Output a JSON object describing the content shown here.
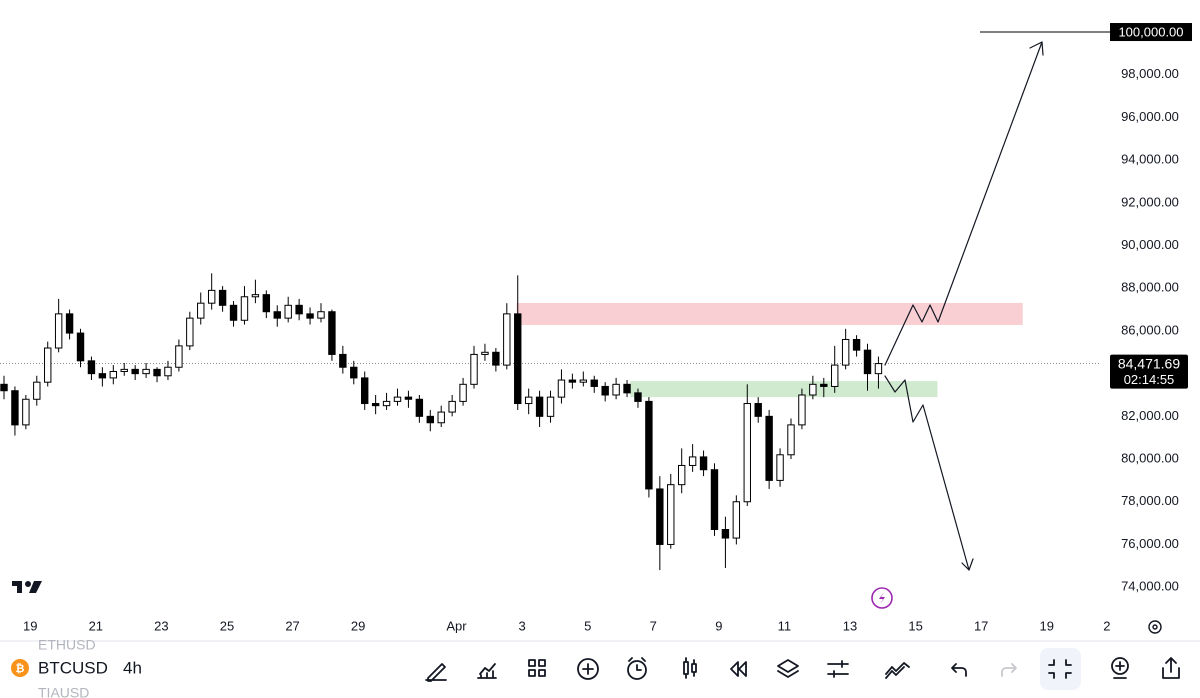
{
  "chart_data": {
    "type": "candlestick",
    "up_color": "#ffffff",
    "down_color": "#000000",
    "candles": [
      [
        83500,
        83900,
        82800,
        83200
      ],
      [
        83200,
        83400,
        81100,
        81600
      ],
      [
        81600,
        83000,
        81400,
        82800
      ],
      [
        82800,
        83900,
        82500,
        83600
      ],
      [
        83600,
        85500,
        83400,
        85200
      ],
      [
        85200,
        87500,
        85000,
        86800
      ],
      [
        86800,
        87000,
        85600,
        85900
      ],
      [
        85900,
        86100,
        84300,
        84600
      ],
      [
        84600,
        84800,
        83700,
        84000
      ],
      [
        84000,
        84300,
        83400,
        83800
      ],
      [
        83800,
        84400,
        83500,
        84100
      ],
      [
        84100,
        84500,
        83900,
        84200
      ],
      [
        84200,
        84400,
        83700,
        84000
      ],
      [
        84000,
        84500,
        83800,
        84200
      ],
      [
        84200,
        84300,
        83600,
        83900
      ],
      [
        83900,
        84600,
        83700,
        84300
      ],
      [
        84300,
        85600,
        84100,
        85300
      ],
      [
        85300,
        86900,
        85100,
        86600
      ],
      [
        86600,
        87800,
        86300,
        87300
      ],
      [
        87300,
        88700,
        87000,
        87900
      ],
      [
        87900,
        88100,
        86900,
        87200
      ],
      [
        87200,
        87400,
        86200,
        86500
      ],
      [
        86500,
        88100,
        86300,
        87600
      ],
      [
        87600,
        88400,
        87300,
        87700
      ],
      [
        87700,
        87900,
        86600,
        86900
      ],
      [
        86900,
        87200,
        86200,
        86600
      ],
      [
        86600,
        87600,
        86400,
        87200
      ],
      [
        87200,
        87500,
        86500,
        86800
      ],
      [
        86800,
        87100,
        86300,
        86600
      ],
      [
        86600,
        87300,
        86400,
        86900
      ],
      [
        86900,
        87000,
        84600,
        84900
      ],
      [
        84900,
        85300,
        84000,
        84300
      ],
      [
        84300,
        84600,
        83500,
        83800
      ],
      [
        83800,
        84100,
        82300,
        82600
      ],
      [
        82600,
        83000,
        82100,
        82500
      ],
      [
        82500,
        83100,
        82300,
        82700
      ],
      [
        82700,
        83300,
        82500,
        82900
      ],
      [
        82900,
        83200,
        82400,
        82800
      ],
      [
        82800,
        83000,
        81700,
        82000
      ],
      [
        82000,
        82300,
        81300,
        81700
      ],
      [
        81700,
        82500,
        81500,
        82200
      ],
      [
        82200,
        83000,
        82000,
        82700
      ],
      [
        82700,
        83800,
        82500,
        83500
      ],
      [
        83500,
        85300,
        83300,
        84900
      ],
      [
        84900,
        85400,
        84600,
        85000
      ],
      [
        85000,
        85200,
        84100,
        84400
      ],
      [
        84400,
        87300,
        84200,
        86800
      ],
      [
        86800,
        88600,
        82300,
        82600
      ],
      [
        82600,
        83300,
        82100,
        82900
      ],
      [
        82900,
        83200,
        81500,
        82000
      ],
      [
        82000,
        83200,
        81700,
        82900
      ],
      [
        82900,
        84200,
        82600,
        83700
      ],
      [
        83700,
        84000,
        83300,
        83600
      ],
      [
        83600,
        84100,
        83400,
        83700
      ],
      [
        83700,
        83900,
        83100,
        83400
      ],
      [
        83400,
        83600,
        82700,
        83000
      ],
      [
        83000,
        83800,
        82800,
        83500
      ],
      [
        83500,
        83700,
        82900,
        83100
      ],
      [
        83100,
        83300,
        82400,
        82700
      ],
      [
        82700,
        82900,
        78200,
        78600
      ],
      [
        78600,
        79200,
        74800,
        76000
      ],
      [
        76000,
        79300,
        75800,
        78800
      ],
      [
        78800,
        80500,
        78400,
        79700
      ],
      [
        79700,
        80700,
        79400,
        80100
      ],
      [
        80100,
        80400,
        79200,
        79500
      ],
      [
        79500,
        79800,
        76400,
        76700
      ],
      [
        76700,
        77300,
        74900,
        76300
      ],
      [
        76300,
        78300,
        76000,
        78000
      ],
      [
        78000,
        83500,
        77800,
        82600
      ],
      [
        82600,
        82900,
        81700,
        82000
      ],
      [
        82000,
        82300,
        78600,
        79000
      ],
      [
        79000,
        80500,
        78700,
        80200
      ],
      [
        80200,
        81900,
        80000,
        81600
      ],
      [
        81600,
        83300,
        81400,
        83000
      ],
      [
        83000,
        83900,
        82800,
        83500
      ],
      [
        83500,
        83800,
        82900,
        83400
      ],
      [
        83400,
        85300,
        83100,
        84400
      ],
      [
        84400,
        86100,
        84200,
        85600
      ],
      [
        85600,
        85800,
        84800,
        85100
      ],
      [
        85100,
        85400,
        83200,
        84000
      ],
      [
        84000,
        84800,
        83300,
        84471.69
      ]
    ],
    "xlim": [
      -0.366,
      100.27
    ],
    "xticks": [
      {
        "value": 2.4,
        "label": "19"
      },
      {
        "value": 8.4,
        "label": "21"
      },
      {
        "value": 14.4,
        "label": "23"
      },
      {
        "value": 20.4,
        "label": "25"
      },
      {
        "value": 26.4,
        "label": "27"
      },
      {
        "value": 32.4,
        "label": "29"
      },
      {
        "value": 41.4,
        "label": "Apr"
      },
      {
        "value": 47.4,
        "label": "3"
      },
      {
        "value": 53.4,
        "label": "5"
      },
      {
        "value": 59.4,
        "label": "7"
      },
      {
        "value": 65.4,
        "label": "9"
      },
      {
        "value": 71.4,
        "label": "11"
      },
      {
        "value": 77.4,
        "label": "13"
      },
      {
        "value": 83.4,
        "label": "15"
      },
      {
        "value": 89.4,
        "label": "17"
      },
      {
        "value": 95.4,
        "label": "19"
      },
      {
        "value": 100.9,
        "label": "2"
      }
    ],
    "ylim": [
      72930,
      101500
    ],
    "yticks": [
      {
        "value": 74000,
        "label": "74,000.00"
      },
      {
        "value": 76000,
        "label": "76,000.00"
      },
      {
        "value": 78000,
        "label": "78,000.00"
      },
      {
        "value": 80000,
        "label": "80,000.00"
      },
      {
        "value": 82000,
        "label": "82,000.00"
      },
      {
        "value": 84000,
        "label": "84,000.00"
      },
      {
        "value": 86000,
        "label": "86,000.00"
      },
      {
        "value": 88000,
        "label": "88,000.00"
      },
      {
        "value": 90000,
        "label": "90,000.00"
      },
      {
        "value": 92000,
        "label": "92,000.00"
      },
      {
        "value": 94000,
        "label": "94,000.00"
      },
      {
        "value": 96000,
        "label": "96,000.00"
      },
      {
        "value": 98000,
        "label": "98,000.00"
      }
    ],
    "target": {
      "value": 100000,
      "label": "100,000.00"
    },
    "last_price": {
      "value": 84471.69,
      "label": "84,471.69"
    },
    "countdown": "02:14:55",
    "zones": [
      {
        "color": "#f9cfd3",
        "from": 46.9,
        "to": 93.2,
        "low": 86280,
        "high": 87310
      },
      {
        "color": "#cfeacf",
        "from": 57.3,
        "to": 85.4,
        "low": 82900,
        "high": 83650
      }
    ]
  },
  "toolbar": {
    "symbol": "BTCUSD",
    "interval": "4h",
    "watchlist": [
      "ETHUSD",
      "TIAUSD"
    ]
  }
}
